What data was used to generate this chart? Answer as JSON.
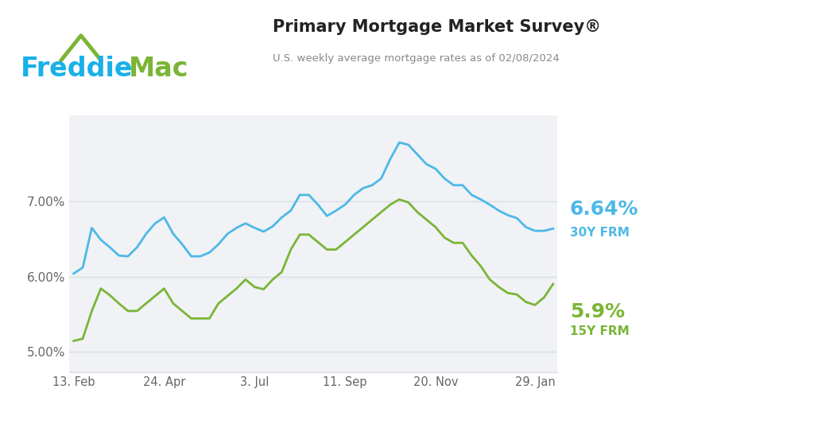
{
  "title": "Primary Mortgage Market Survey®",
  "subtitle": "U.S. weekly average mortgage rates as of 02/08/2024",
  "title_color": "#222222",
  "subtitle_color": "#888888",
  "background_color": "#ffffff",
  "plot_bg_color": "#f0f2f5",
  "line_30y_color": "#4db8e8",
  "line_15y_color": "#7ab536",
  "label_30y": "6.64%",
  "label_15y": "5.9%",
  "frm_30y": "30Y FRM",
  "frm_15y": "15Y FRM",
  "freddie_blue": "#1ab0e8",
  "freddie_green": "#7ab536",
  "ytick_labels": [
    "5.00%",
    "6.00%",
    "7.00%"
  ],
  "ytick_values": [
    5.0,
    6.0,
    7.0
  ],
  "ylim": [
    4.72,
    8.15
  ],
  "xtick_labels": [
    "13. Feb",
    "24. Apr",
    "3. Jul",
    "11. Sep",
    "20. Nov",
    "29. Jan"
  ],
  "xtick_positions": [
    0,
    10,
    20,
    30,
    40,
    51
  ],
  "rate_30y": [
    6.04,
    6.12,
    6.65,
    6.49,
    6.39,
    6.28,
    6.27,
    6.39,
    6.57,
    6.71,
    6.79,
    6.57,
    6.43,
    6.27,
    6.27,
    6.32,
    6.43,
    6.57,
    6.65,
    6.71,
    6.65,
    6.6,
    6.67,
    6.79,
    6.88,
    7.09,
    7.09,
    6.96,
    6.81,
    6.88,
    6.96,
    7.09,
    7.18,
    7.22,
    7.31,
    7.57,
    7.79,
    7.76,
    7.63,
    7.5,
    7.44,
    7.31,
    7.22,
    7.22,
    7.09,
    7.03,
    6.96,
    6.88,
    6.82,
    6.78,
    6.66,
    6.61,
    6.61,
    6.64
  ],
  "rate_15y": [
    5.14,
    5.17,
    5.54,
    5.84,
    5.75,
    5.64,
    5.54,
    5.54,
    5.64,
    5.74,
    5.84,
    5.64,
    5.54,
    5.44,
    5.44,
    5.44,
    5.64,
    5.74,
    5.84,
    5.96,
    5.86,
    5.83,
    5.96,
    6.06,
    6.36,
    6.56,
    6.56,
    6.46,
    6.36,
    6.36,
    6.46,
    6.56,
    6.66,
    6.76,
    6.86,
    6.96,
    7.03,
    6.99,
    6.86,
    6.76,
    6.66,
    6.52,
    6.45,
    6.45,
    6.28,
    6.14,
    5.96,
    5.86,
    5.78,
    5.76,
    5.66,
    5.62,
    5.72,
    5.9
  ]
}
